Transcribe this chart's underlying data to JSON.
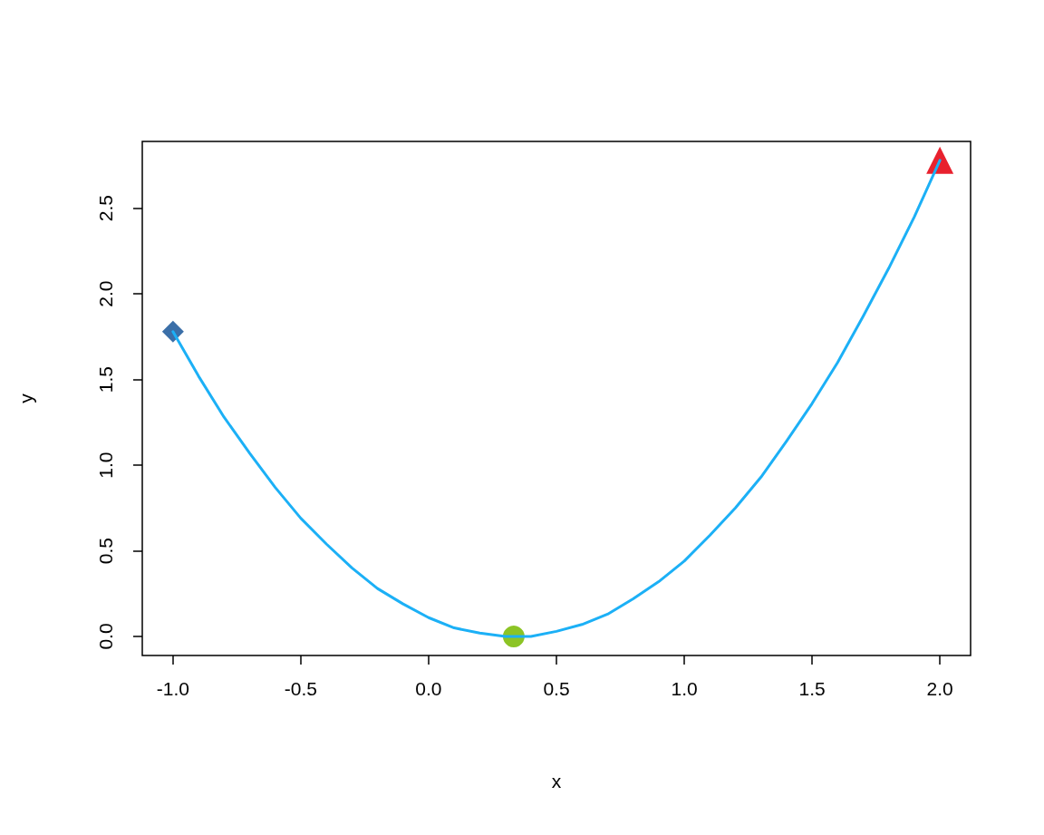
{
  "chart_data": {
    "type": "line",
    "xlabel": "x",
    "ylabel": "y",
    "xlim": [
      -1.12,
      2.12
    ],
    "ylim": [
      -0.111,
      2.89
    ],
    "xticks": [
      {
        "value": -1,
        "label": "-1.0"
      },
      {
        "value": -0.5,
        "label": "-0.5"
      },
      {
        "value": 0,
        "label": "0.0"
      },
      {
        "value": 0.5,
        "label": "0.5"
      },
      {
        "value": 1,
        "label": "1.0"
      },
      {
        "value": 1.5,
        "label": "1.5"
      },
      {
        "value": 2,
        "label": "2.0"
      }
    ],
    "yticks": [
      {
        "value": 0,
        "label": "0.0"
      },
      {
        "value": 0.5,
        "label": "0.5"
      },
      {
        "value": 1,
        "label": "1.0"
      },
      {
        "value": 1.5,
        "label": "1.5"
      },
      {
        "value": 2,
        "label": "2.0"
      },
      {
        "value": 2.5,
        "label": "2.5"
      }
    ],
    "grid": false,
    "series": [
      {
        "color": "#1cb0f6",
        "marker": "none",
        "line_style": "solid",
        "x": [
          -1.0,
          -0.9,
          -0.8,
          -0.7,
          -0.6,
          -0.5,
          -0.4,
          -0.3,
          -0.2,
          -0.1,
          0.0,
          0.1,
          0.2,
          0.3,
          0.4,
          0.5,
          0.6,
          0.7,
          0.8,
          0.9,
          1.0,
          1.1,
          1.2,
          1.3,
          1.4,
          1.5,
          1.6,
          1.7,
          1.8,
          1.9,
          2.0
        ],
        "values": [
          1.78,
          1.52,
          1.28,
          1.07,
          0.87,
          0.69,
          0.54,
          0.4,
          0.28,
          0.19,
          0.11,
          0.05,
          0.02,
          0.0,
          0.0,
          0.03,
          0.07,
          0.13,
          0.22,
          0.32,
          0.44,
          0.59,
          0.75,
          0.93,
          1.14,
          1.36,
          1.6,
          1.87,
          2.15,
          2.45,
          2.78
        ]
      },
      {
        "type": "scatter",
        "color": "#3b6fa8",
        "marker": "diamond",
        "x": [
          -1.0
        ],
        "values": [
          1.78
        ]
      },
      {
        "type": "scatter",
        "color": "#8cc425",
        "marker": "circle",
        "x": [
          0.333
        ],
        "values": [
          0.0
        ]
      },
      {
        "type": "scatter",
        "color": "#e8212e",
        "marker": "triangle",
        "x": [
          2.0
        ],
        "values": [
          2.78
        ]
      }
    ]
  }
}
